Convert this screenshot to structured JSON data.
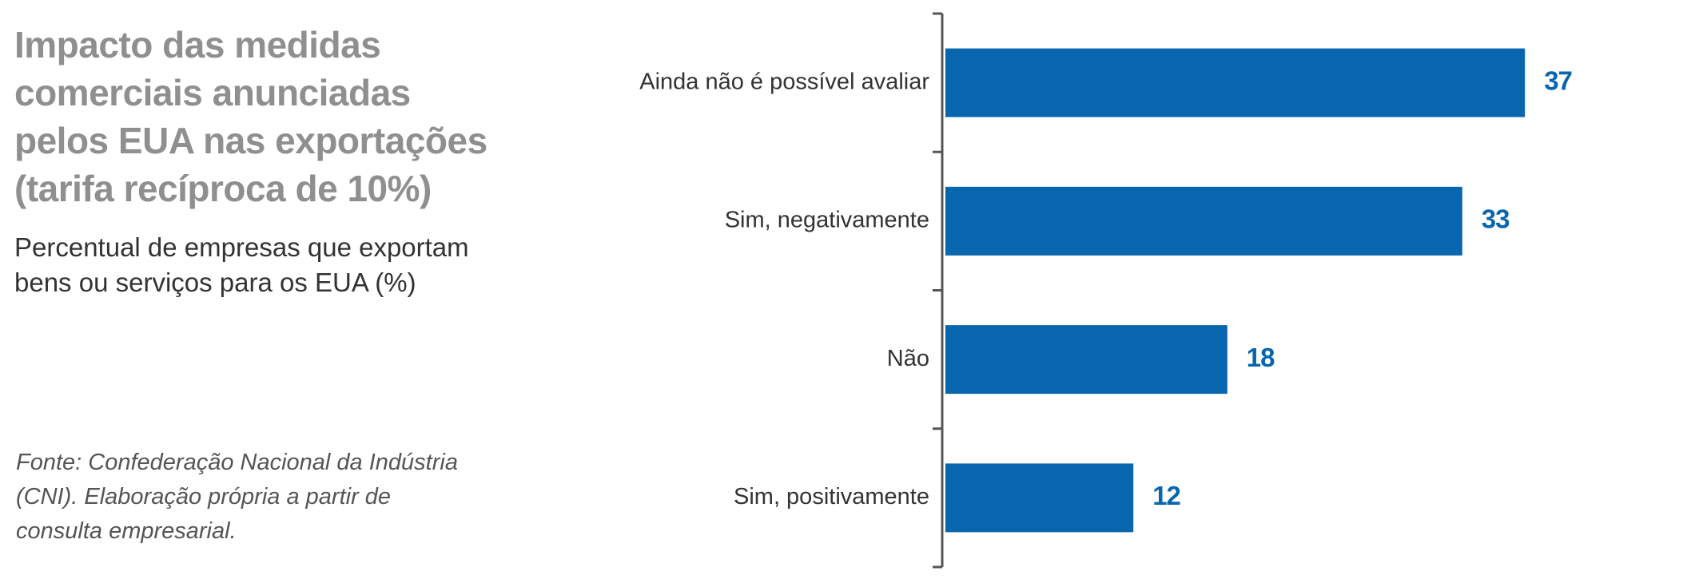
{
  "chart_data": {
    "type": "bar",
    "orientation": "horizontal",
    "title": "Impacto das medidas comerciais anunciadas pelos EUA nas exportações (tarifa recíproca de 10%)",
    "title_lines": [
      "Impacto das medidas",
      "comerciais anunciadas",
      "pelos EUA nas exportações",
      "(tarifa recíproca de 10%)"
    ],
    "subtitle": "Percentual de empresas que exportam bens ou serviços para os EUA (%)",
    "subtitle_lines": [
      "Percentual de empresas que exportam",
      "bens ou serviços para os EUA (%)"
    ],
    "source": "Fonte: Confederação Nacional da Indústria (CNI). Elaboração própria a partir de consulta empresarial.",
    "source_lines": [
      "Fonte: Confederação Nacional da Indústria",
      "(CNI). Elaboração própria a partir de",
      "consulta empresarial."
    ],
    "categories": [
      "Ainda não é possível avaliar",
      "Sim, negativamente",
      "Não",
      "Sim, positivamente"
    ],
    "values": [
      37,
      33,
      18,
      12
    ],
    "xlim": [
      0,
      50
    ],
    "bar_color": "#0866ae",
    "value_label_color": "#0866ae",
    "axis_color": "#555555",
    "grid": false,
    "legend": "none"
  }
}
